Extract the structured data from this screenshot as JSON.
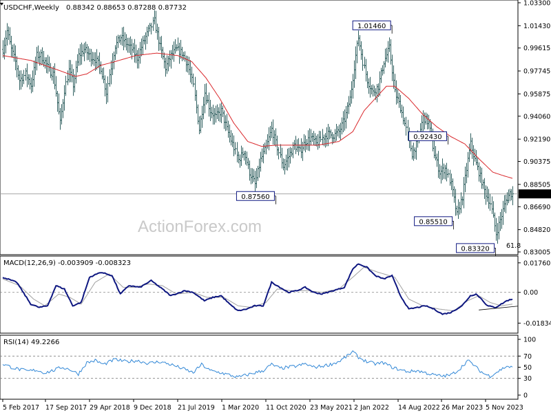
{
  "header": {
    "symbol": "USDCHF,Weekly",
    "ohlc": "0.88342 0.88653 0.87288 0.87732"
  },
  "watermark": "ActionForex.com",
  "colors": {
    "bg": "#ffffff",
    "bars": "#2f5f5f",
    "ma": "#d9262a",
    "macd": "#0d1680",
    "signal": "#a0a0a0",
    "rsi": "#2f86d6",
    "grid": "#808080",
    "axis": "#000000"
  },
  "chart_data": [
    {
      "type": "ohlc",
      "title": "USDCHF,Weekly",
      "ylim": [
        0.83005,
        1.033
      ],
      "yticks": [
        "1.03300",
        "1.01430",
        "0.99615",
        "0.97745",
        "0.95875",
        "0.94060",
        "0.92190",
        "0.90375",
        "0.88505",
        "0.86690",
        "0.84820",
        "0.83005"
      ],
      "x": [
        "5 Feb 2017",
        "17 Sep 2017",
        "29 Apr 2018",
        "9 Dec 2018",
        "21 Jul 2019",
        "1 Mar 2020",
        "11 Oct 2020",
        "23 May 2021",
        "2 Jan 2022",
        "14 Aug 2022",
        "26 Mar 2023",
        "5 Nov 2023"
      ],
      "last_price": "0.87732",
      "price_path": [
        [
          0,
          0.995
        ],
        [
          3,
          1.01
        ],
        [
          6,
          0.995
        ],
        [
          9,
          0.985
        ],
        [
          12,
          0.97
        ],
        [
          16,
          0.975
        ],
        [
          20,
          0.966
        ],
        [
          24,
          0.99
        ],
        [
          27,
          0.99
        ],
        [
          30,
          0.985
        ],
        [
          33,
          0.978
        ],
        [
          36,
          0.975
        ],
        [
          38,
          0.96
        ],
        [
          41,
          0.935
        ],
        [
          44,
          0.962
        ],
        [
          47,
          0.978
        ],
        [
          50,
          0.966
        ],
        [
          54,
          0.99
        ],
        [
          58,
          0.995
        ],
        [
          62,
          0.99
        ],
        [
          66,
          0.987
        ],
        [
          70,
          0.98
        ],
        [
          74,
          0.96
        ],
        [
          76,
          0.975
        ],
        [
          80,
          0.998
        ],
        [
          84,
          1.005
        ],
        [
          88,
          1.0
        ],
        [
          92,
          0.995
        ],
        [
          96,
          0.988
        ],
        [
          100,
          1.0
        ],
        [
          104,
          1.01
        ],
        [
          108,
          1.018
        ],
        [
          112,
          0.997
        ],
        [
          116,
          0.98
        ],
        [
          120,
          0.99
        ],
        [
          124,
          0.995
        ],
        [
          128,
          0.992
        ],
        [
          132,
          0.983
        ],
        [
          136,
          0.965
        ],
        [
          140,
          0.93
        ],
        [
          144,
          0.96
        ],
        [
          148,
          0.945
        ],
        [
          152,
          0.94
        ],
        [
          156,
          0.945
        ],
        [
          160,
          0.93
        ],
        [
          164,
          0.918
        ],
        [
          168,
          0.905
        ],
        [
          172,
          0.912
        ],
        [
          176,
          0.895
        ],
        [
          180,
          0.885
        ],
        [
          184,
          0.905
        ],
        [
          188,
          0.915
        ],
        [
          192,
          0.93
        ],
        [
          196,
          0.915
        ],
        [
          200,
          0.9
        ],
        [
          204,
          0.908
        ],
        [
          208,
          0.917
        ],
        [
          212,
          0.912
        ],
        [
          216,
          0.92
        ],
        [
          220,
          0.923
        ],
        [
          224,
          0.918
        ],
        [
          228,
          0.923
        ],
        [
          232,
          0.926
        ],
        [
          236,
          0.925
        ],
        [
          240,
          0.928
        ],
        [
          244,
          0.938
        ],
        [
          248,
          0.955
        ],
        [
          252,
          0.99
        ],
        [
          254,
          1.005
        ],
        [
          257,
          0.985
        ],
        [
          260,
          0.97
        ],
        [
          264,
          0.96
        ],
        [
          268,
          0.965
        ],
        [
          272,
          0.985
        ],
        [
          276,
          0.996
        ],
        [
          280,
          0.96
        ],
        [
          284,
          0.948
        ],
        [
          288,
          0.93
        ],
        [
          292,
          0.91
        ],
        [
          296,
          0.92
        ],
        [
          300,
          0.94
        ],
        [
          304,
          0.935
        ],
        [
          308,
          0.91
        ],
        [
          312,
          0.895
        ],
        [
          316,
          0.898
        ],
        [
          320,
          0.885
        ],
        [
          324,
          0.86
        ],
        [
          328,
          0.875
        ],
        [
          332,
          0.905
        ],
        [
          334,
          0.918
        ],
        [
          337,
          0.905
        ],
        [
          340,
          0.895
        ],
        [
          344,
          0.88
        ],
        [
          348,
          0.87
        ],
        [
          352,
          0.845
        ],
        [
          356,
          0.86
        ],
        [
          359,
          0.872
        ],
        [
          362,
          0.878
        ],
        [
          364,
          0.877
        ]
      ],
      "ma_path": [
        [
          0,
          0.99
        ],
        [
          20,
          0.986
        ],
        [
          40,
          0.978
        ],
        [
          52,
          0.973
        ],
        [
          60,
          0.975
        ],
        [
          70,
          0.982
        ],
        [
          80,
          0.985
        ],
        [
          95,
          0.99
        ],
        [
          110,
          0.992
        ],
        [
          125,
          0.99
        ],
        [
          135,
          0.985
        ],
        [
          145,
          0.972
        ],
        [
          155,
          0.955
        ],
        [
          165,
          0.935
        ],
        [
          175,
          0.92
        ],
        [
          185,
          0.916
        ],
        [
          195,
          0.917
        ],
        [
          210,
          0.917
        ],
        [
          225,
          0.917
        ],
        [
          240,
          0.92
        ],
        [
          250,
          0.928
        ],
        [
          258,
          0.945
        ],
        [
          266,
          0.955
        ],
        [
          274,
          0.965
        ],
        [
          280,
          0.965
        ],
        [
          290,
          0.955
        ],
        [
          300,
          0.942
        ],
        [
          310,
          0.932
        ],
        [
          320,
          0.924
        ],
        [
          330,
          0.918
        ],
        [
          340,
          0.906
        ],
        [
          350,
          0.895
        ],
        [
          358,
          0.892
        ],
        [
          364,
          0.89
        ]
      ],
      "levels": [
        {
          "label": "1.01460",
          "value": 1.0146,
          "bar": 278
        },
        {
          "label": "0.92430",
          "value": 0.9243,
          "bar": 318
        },
        {
          "label": "0.87560",
          "value": 0.8756,
          "bar": 195
        },
        {
          "label": "0.85510",
          "value": 0.8551,
          "bar": 322
        },
        {
          "label": "0.83320",
          "value": 0.8332,
          "bar": 352
        }
      ],
      "fib_label": "61.8"
    },
    {
      "type": "line",
      "title": "MACD(12,26,9) -0.003909 -0.008323",
      "ylim": [
        -0.0235,
        0.02
      ],
      "yticks": [
        "0.017603",
        "0.00",
        "-0.01834"
      ],
      "series": [
        {
          "name": "macd",
          "values_path": [
            [
              0,
              0.009
            ],
            [
              10,
              0.006
            ],
            [
              20,
              -0.007
            ],
            [
              26,
              -0.009
            ],
            [
              32,
              -0.008
            ],
            [
              38,
              0.004
            ],
            [
              44,
              0.002
            ],
            [
              50,
              -0.008
            ],
            [
              56,
              -0.006
            ],
            [
              62,
              0.009
            ],
            [
              70,
              0.012
            ],
            [
              78,
              0.01
            ],
            [
              84,
              -0.001
            ],
            [
              90,
              0.004
            ],
            [
              98,
              0.003
            ],
            [
              106,
              0.007
            ],
            [
              114,
              0.002
            ],
            [
              120,
              -0.002
            ],
            [
              130,
              0.001
            ],
            [
              136,
              0.0
            ],
            [
              144,
              -0.005
            ],
            [
              150,
              -0.003
            ],
            [
              156,
              -0.002
            ],
            [
              162,
              -0.007
            ],
            [
              168,
              -0.011
            ],
            [
              174,
              -0.01
            ],
            [
              180,
              -0.008
            ],
            [
              186,
              -0.008
            ],
            [
              192,
              0.006
            ],
            [
              198,
              0.003
            ],
            [
              204,
              0.0
            ],
            [
              210,
              0.001
            ],
            [
              216,
              0.003
            ],
            [
              222,
              0.0
            ],
            [
              228,
              -0.001
            ],
            [
              236,
              0.001
            ],
            [
              244,
              0.003
            ],
            [
              250,
              0.014
            ],
            [
              254,
              0.017
            ],
            [
              260,
              0.015
            ],
            [
              266,
              0.01
            ],
            [
              272,
              0.008
            ],
            [
              278,
              0.01
            ],
            [
              284,
              -0.002
            ],
            [
              290,
              -0.01
            ],
            [
              296,
              -0.009
            ],
            [
              302,
              -0.008
            ],
            [
              308,
              -0.01
            ],
            [
              314,
              -0.013
            ],
            [
              320,
              -0.012
            ],
            [
              328,
              -0.008
            ],
            [
              334,
              -0.002
            ],
            [
              338,
              -0.001
            ],
            [
              342,
              -0.004
            ],
            [
              346,
              -0.008
            ],
            [
              352,
              -0.009
            ],
            [
              356,
              -0.007
            ],
            [
              360,
              -0.005
            ],
            [
              364,
              -0.004
            ]
          ]
        },
        {
          "name": "signal",
          "values_path": [
            [
              0,
              0.008
            ],
            [
              12,
              0.004
            ],
            [
              22,
              -0.004
            ],
            [
              30,
              -0.008
            ],
            [
              40,
              -0.001
            ],
            [
              48,
              -0.003
            ],
            [
              56,
              -0.007
            ],
            [
              66,
              0.006
            ],
            [
              76,
              0.011
            ],
            [
              86,
              0.003
            ],
            [
              94,
              0.003
            ],
            [
              104,
              0.005
            ],
            [
              114,
              0.004
            ],
            [
              124,
              -0.001
            ],
            [
              136,
              0.0
            ],
            [
              146,
              -0.003
            ],
            [
              158,
              -0.003
            ],
            [
              168,
              -0.008
            ],
            [
              178,
              -0.009
            ],
            [
              188,
              -0.006
            ],
            [
              196,
              0.002
            ],
            [
              206,
              0.001
            ],
            [
              218,
              0.001
            ],
            [
              228,
              0.0
            ],
            [
              240,
              0.002
            ],
            [
              250,
              0.009
            ],
            [
              258,
              0.015
            ],
            [
              268,
              0.012
            ],
            [
              280,
              0.009
            ],
            [
              290,
              -0.004
            ],
            [
              300,
              -0.008
            ],
            [
              312,
              -0.01
            ],
            [
              322,
              -0.011
            ],
            [
              332,
              -0.005
            ],
            [
              340,
              -0.002
            ],
            [
              348,
              -0.006
            ],
            [
              356,
              -0.008
            ],
            [
              364,
              -0.007
            ]
          ]
        }
      ],
      "trendline": [
        [
          340,
          -0.0105
        ],
        [
          364,
          -0.0082
        ]
      ]
    },
    {
      "type": "line",
      "title": "RSI(14) 49.2266",
      "ylim": [
        0,
        100
      ],
      "yticks": [
        "100",
        "70",
        "50",
        "30",
        "0"
      ],
      "series": [
        {
          "name": "rsi",
          "values_path": [
            [
              0,
              56
            ],
            [
              6,
              50
            ],
            [
              12,
              46
            ],
            [
              18,
              43
            ],
            [
              24,
              45
            ],
            [
              30,
              40
            ],
            [
              36,
              44
            ],
            [
              42,
              50
            ],
            [
              48,
              46
            ],
            [
              54,
              38
            ],
            [
              60,
              58
            ],
            [
              66,
              62
            ],
            [
              72,
              55
            ],
            [
              80,
              64
            ],
            [
              88,
              60
            ],
            [
              96,
              62
            ],
            [
              104,
              57
            ],
            [
              112,
              60
            ],
            [
              120,
              55
            ],
            [
              128,
              48
            ],
            [
              136,
              40
            ],
            [
              142,
              55
            ],
            [
              148,
              44
            ],
            [
              156,
              40
            ],
            [
              162,
              36
            ],
            [
              168,
              32
            ],
            [
              174,
              36
            ],
            [
              180,
              40
            ],
            [
              186,
              44
            ],
            [
              192,
              55
            ],
            [
              198,
              48
            ],
            [
              204,
              50
            ],
            [
              210,
              52
            ],
            [
              216,
              56
            ],
            [
              222,
              50
            ],
            [
              228,
              52
            ],
            [
              234,
              55
            ],
            [
              240,
              60
            ],
            [
              246,
              70
            ],
            [
              250,
              78
            ],
            [
              254,
              68
            ],
            [
              260,
              60
            ],
            [
              266,
              56
            ],
            [
              272,
              58
            ],
            [
              278,
              50
            ],
            [
              284,
              45
            ],
            [
              290,
              42
            ],
            [
              296,
              44
            ],
            [
              302,
              40
            ],
            [
              308,
              36
            ],
            [
              314,
              34
            ],
            [
              320,
              36
            ],
            [
              326,
              46
            ],
            [
              332,
              62
            ],
            [
              336,
              55
            ],
            [
              340,
              45
            ],
            [
              344,
              38
            ],
            [
              348,
              34
            ],
            [
              352,
              40
            ],
            [
              356,
              46
            ],
            [
              360,
              52
            ],
            [
              364,
              49
            ]
          ]
        }
      ]
    }
  ]
}
